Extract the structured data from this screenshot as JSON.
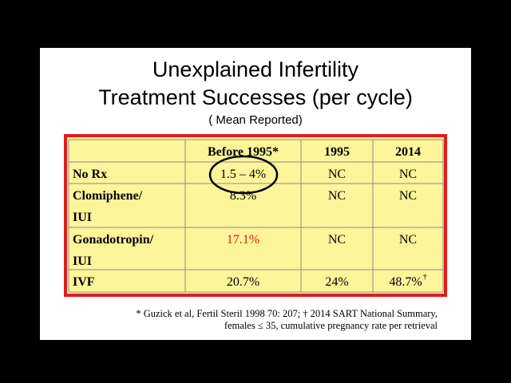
{
  "slide": {
    "title": [
      "Unexplained Infertility",
      "Treatment Successes (per cycle)"
    ],
    "subtitle": "( Mean Reported)",
    "table": {
      "header": [
        "Before 1995*",
        "1995",
        "2014"
      ],
      "rows": [
        {
          "label": [
            "No Rx"
          ],
          "cells": [
            "1.5 – 4%",
            "NC",
            "NC"
          ]
        },
        {
          "label": [
            "Clomiphene/",
            "IUI"
          ],
          "cells": [
            "8.3%",
            "NC",
            "NC"
          ]
        },
        {
          "label": [
            "Gonadotropin/",
            "IUI"
          ],
          "cells": [
            "17.1%",
            "NC",
            "NC"
          ]
        },
        {
          "label": [
            "IVF"
          ],
          "cells": [
            "20.7%",
            "24%",
            "48.7%"
          ],
          "mark": "†"
        }
      ]
    },
    "footnote": [
      "* Guzick et al, Fertil Steril 1998 70: 207; † 2014 SART National Summary,",
      "females ≤ 35, cumulative pregnancy rate per retrieval"
    ]
  }
}
